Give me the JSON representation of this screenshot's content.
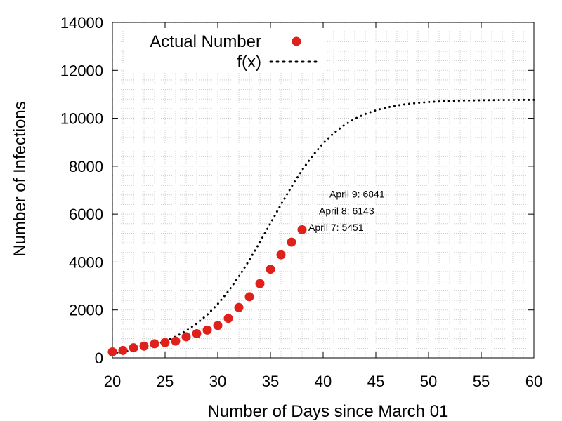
{
  "chart_data": {
    "type": "scatter",
    "xlabel": "Number of Days since March 01",
    "ylabel": "Number of Infections",
    "xlim": [
      20,
      60
    ],
    "ylim": [
      0,
      14000
    ],
    "x_ticks": [
      20,
      25,
      30,
      35,
      40,
      45,
      50,
      55,
      60
    ],
    "y_ticks": [
      0,
      2000,
      4000,
      6000,
      8000,
      10000,
      12000,
      14000
    ],
    "x_tick_labels": [
      "20",
      "25",
      "30",
      "35",
      "40",
      "45",
      "50",
      "55",
      "60"
    ],
    "y_tick_labels": [
      "0",
      "2000",
      "4000",
      "6000",
      "8000",
      "10000",
      "12000",
      "14000"
    ],
    "grid": true,
    "legend_position": "top-left",
    "series": [
      {
        "name": "Actual Number",
        "style": "markers",
        "color": "#e0201b",
        "x": [
          20,
          21,
          22,
          23,
          24,
          25,
          26,
          27,
          28,
          29,
          30,
          31,
          32,
          33,
          34,
          35,
          36,
          37,
          38
        ],
        "y": [
          250,
          310,
          420,
          490,
          590,
          640,
          700,
          880,
          1010,
          1160,
          1350,
          1650,
          2100,
          2550,
          3100,
          3700,
          4300,
          4830,
          5350
        ]
      },
      {
        "name": "f(x)",
        "style": "dotted",
        "color": "#000000",
        "x": [
          20,
          21,
          22,
          23,
          24,
          25,
          26,
          27,
          28,
          29,
          30,
          31,
          32,
          33,
          34,
          35,
          36,
          37,
          38,
          39,
          40,
          41,
          42,
          43,
          44,
          45,
          46,
          47,
          48,
          49,
          50,
          51,
          52,
          53,
          54,
          55,
          56,
          57,
          58,
          59,
          60
        ],
        "y": [
          196,
          253,
          327,
          421,
          542,
          695,
          888,
          1130,
          1431,
          1800,
          2248,
          2779,
          3394,
          4085,
          4834,
          5616,
          6398,
          7147,
          7835,
          8441,
          8955,
          9377,
          9714,
          9977,
          10179,
          10332,
          10447,
          10532,
          10596,
          10642,
          10677,
          10702,
          10721,
          10734,
          10744,
          10751,
          10757,
          10761,
          10764,
          10766,
          10767
        ]
      }
    ],
    "annotations": [
      {
        "label": "April 7: 5451",
        "x": 38,
        "y": 5451
      },
      {
        "label": "April 8: 6143",
        "x": 39,
        "y": 6143
      },
      {
        "label": "April 9: 6841",
        "x": 40,
        "y": 6841
      }
    ]
  }
}
